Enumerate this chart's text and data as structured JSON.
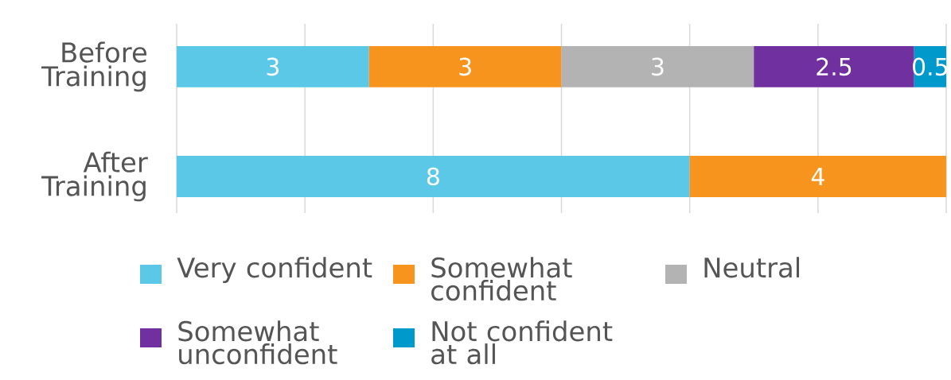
{
  "chart_data": {
    "type": "bar",
    "orientation": "horizontal",
    "stacked": true,
    "categories": [
      "Before Training",
      "After Training"
    ],
    "series": [
      {
        "name": "Very confident",
        "color": "#5bc8e8",
        "values": [
          3,
          8
        ]
      },
      {
        "name": "Somewhat confident",
        "color": "#f7941d",
        "values": [
          3,
          4
        ]
      },
      {
        "name": "Neutral",
        "color": "#b3b3b3",
        "values": [
          3,
          null
        ]
      },
      {
        "name": "Somewhat unconfident",
        "color": "#7030a0",
        "values": [
          2.5,
          null
        ]
      },
      {
        "name": "Not confident at all",
        "color": "#0099cc",
        "values": [
          0.5,
          null
        ]
      }
    ],
    "xlim": [
      0,
      12
    ],
    "xticks": [
      {
        "value": 0,
        "label": null
      },
      {
        "value": 2,
        "label": null
      },
      {
        "value": 4,
        "label": null
      },
      {
        "value": 6,
        "label": null
      },
      {
        "value": 8,
        "label": null
      },
      {
        "value": 10,
        "label": null
      },
      {
        "value": 12,
        "label": null
      }
    ],
    "tick_labels": "y",
    "grid": "x",
    "data_labels": true,
    "legend": "bottom"
  }
}
